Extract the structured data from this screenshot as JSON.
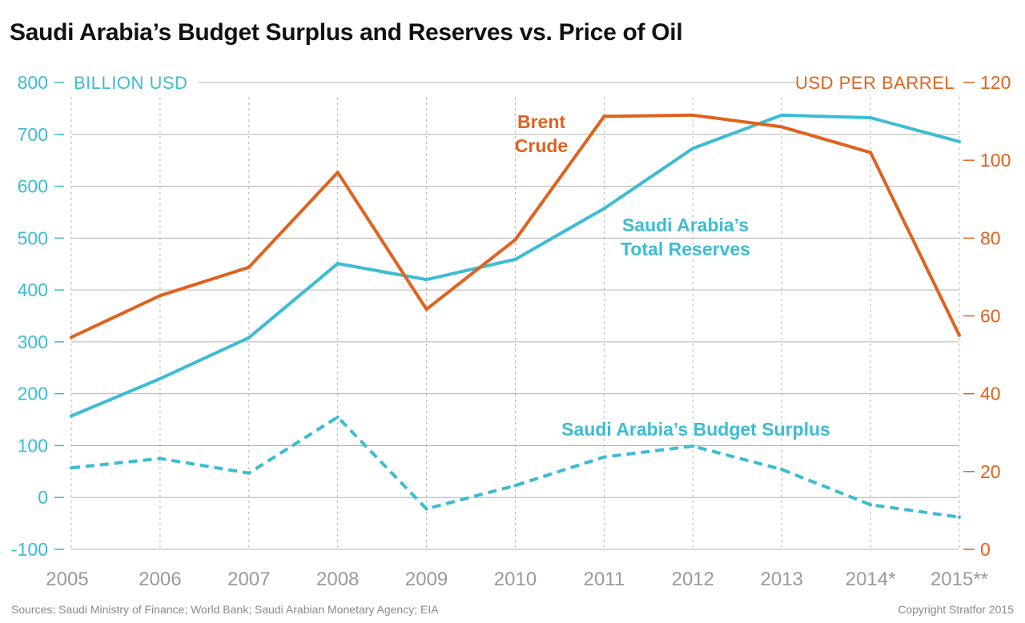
{
  "title": "Saudi Arabia’s Budget Surplus and Reserves vs. Price of Oil",
  "footer": {
    "sources": "Sources: Saudi Ministry of Finance; World Bank; Saudi Arabian Monetary Agency; EIA",
    "copyright": "Copyright Stratfor 2015"
  },
  "colors": {
    "teal": "#3cbcd3",
    "orange": "#e0621d",
    "grid": "#b5b5b5",
    "year_label": "#9a9a9a"
  },
  "chart_data": {
    "type": "line",
    "x": [
      "2005",
      "2006",
      "2007",
      "2008",
      "2009",
      "2010",
      "2011",
      "2012",
      "2013",
      "2014*",
      "2015**"
    ],
    "left_axis": {
      "label": "BILLION USD",
      "ylim": [
        -100,
        800
      ],
      "ticks": [
        "800",
        "700",
        "600",
        "500",
        "400",
        "300",
        "200",
        "100",
        "0",
        "-100"
      ]
    },
    "right_axis": {
      "label": "USD PER BARREL",
      "ylim": [
        0,
        120
      ],
      "ticks": [
        "120",
        "100",
        "80",
        "60",
        "40",
        "20",
        "0"
      ]
    },
    "series": [
      {
        "name": "Saudi Arabia’s Total Reserves",
        "axis": "left",
        "style": "solid",
        "color": "#3cbcd3",
        "values": [
          157,
          229,
          308,
          451,
          420,
          459,
          557,
          673,
          737,
          732,
          686
        ]
      },
      {
        "name": "Saudi Arabia’s Budget Surplus",
        "axis": "left",
        "style": "dashed",
        "color": "#3cbcd3",
        "values": [
          57,
          75,
          47,
          155,
          -22,
          23,
          78,
          99,
          54,
          -14,
          -38
        ]
      },
      {
        "name": "Brent Crude",
        "axis": "right",
        "style": "solid",
        "color": "#e0621d",
        "values": [
          54.5,
          65.2,
          72.5,
          96.9,
          61.7,
          79.6,
          111.3,
          111.6,
          108.6,
          102.0,
          55.0
        ]
      }
    ],
    "annotations": [
      {
        "text": "Brent Crude",
        "series": "Brent Crude"
      },
      {
        "text": "Saudi Arabia’s Total Reserves",
        "series": "Saudi Arabia’s Total Reserves"
      },
      {
        "text": "Saudi Arabia’s Budget Surplus",
        "series": "Saudi Arabia’s Budget Surplus"
      }
    ],
    "grid": true
  }
}
